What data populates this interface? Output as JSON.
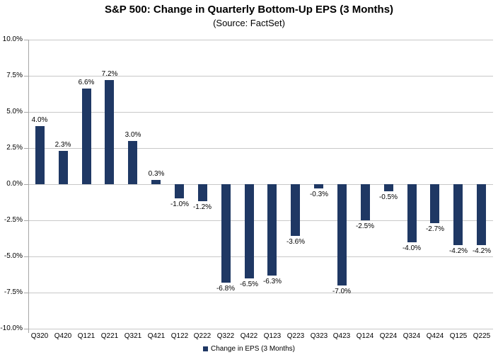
{
  "chart_data": {
    "type": "bar",
    "title": "S&P 500: Change in Quarterly Bottom-Up EPS (3 Months)",
    "subtitle": "(Source: FactSet)",
    "categories": [
      "Q320",
      "Q420",
      "Q121",
      "Q221",
      "Q321",
      "Q421",
      "Q122",
      "Q222",
      "Q322",
      "Q422",
      "Q123",
      "Q223",
      "Q323",
      "Q423",
      "Q124",
      "Q224",
      "Q324",
      "Q424",
      "Q125",
      "Q225"
    ],
    "values": [
      4.0,
      2.3,
      6.6,
      7.2,
      3.0,
      0.3,
      -1.0,
      -1.2,
      -6.8,
      -6.5,
      -6.3,
      -3.6,
      -0.3,
      -7.0,
      -2.5,
      -0.5,
      -4.0,
      -2.7,
      -4.2,
      -4.2
    ],
    "value_labels": [
      "4.0%",
      "2.3%",
      "6.6%",
      "7.2%",
      "3.0%",
      "0.3%",
      "-1.0%",
      "-1.2%",
      "-6.8%",
      "-6.5%",
      "-6.3%",
      "-3.6%",
      "-0.3%",
      "-7.0%",
      "-2.5%",
      "-0.5%",
      "-4.0%",
      "-2.7%",
      "-4.2%",
      "-4.2%"
    ],
    "ylabel": "",
    "xlabel": "",
    "ylim": [
      -10,
      10
    ],
    "ytick_step": 2.5,
    "ytick_labels": [
      "10.0%",
      "7.5%",
      "5.0%",
      "2.5%",
      "0.0%",
      "-2.5%",
      "-5.0%",
      "-7.5%",
      "-10.0%"
    ],
    "grid": true,
    "legend": {
      "label": "Change in EPS (3 Months)",
      "position": "bottom"
    },
    "colors": {
      "bar": "#1F3864",
      "gridline": "#C8C8C8",
      "axis": "#A6A6A6",
      "text": "#000000",
      "background": "#FFFFFF"
    }
  }
}
